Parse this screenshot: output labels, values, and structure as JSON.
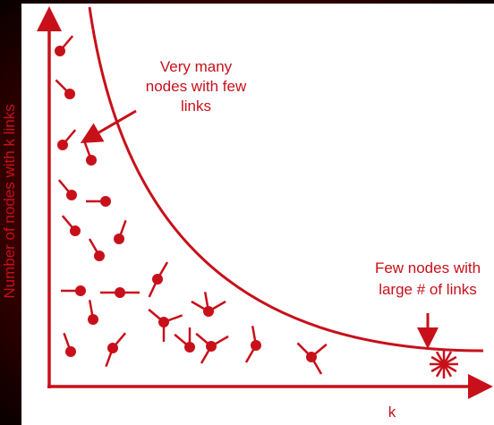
{
  "y_axis_label": "Number of nodes with k links",
  "x_axis_label": "k",
  "annotations": [
    {
      "lines": [
        "Very many",
        "nodes with few",
        "links"
      ]
    },
    {
      "lines": [
        "Few nodes with",
        "large # of links"
      ]
    }
  ]
}
